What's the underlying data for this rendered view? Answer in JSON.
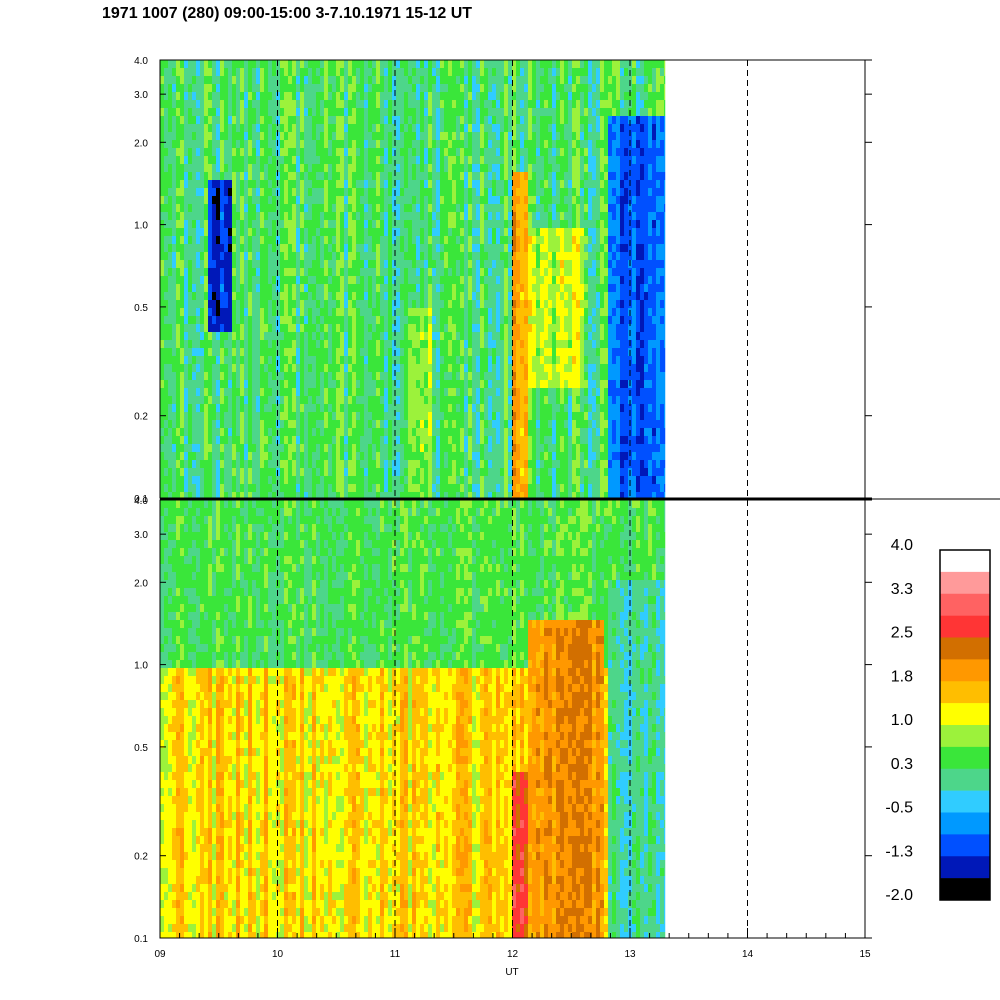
{
  "title": "1971 1007 (280) 09:00-15:00 3-7.10.1971  15-12 UT",
  "chart_data": {
    "type": "heatmap",
    "title": "1971 1007 (280) 09:00-15:00 3-7.10.1971  15-12 UT",
    "xlabel": "UT",
    "ylabel": "",
    "xlim": [
      9,
      15
    ],
    "x_tick_labels": [
      "09",
      "10",
      "11",
      "12",
      "13",
      "14",
      "15"
    ],
    "x_ticks": [
      9,
      10,
      11,
      12,
      13,
      14,
      15
    ],
    "data_end_ut": 13.3,
    "y_scale": "log",
    "ylim": [
      0.1,
      4.0
    ],
    "y_ticks": [
      0.1,
      0.2,
      0.5,
      1.0,
      2.0,
      3.0,
      4.0
    ],
    "y_tick_labels": [
      "0.1",
      "0.2",
      "0.5",
      "1.0",
      "2.0",
      "3.0",
      "4.0"
    ],
    "grid": "dashed vertical lines at each hour",
    "panels": [
      {
        "id": "upper",
        "dominant_level": 0.3,
        "features": [
          {
            "ut": [
              9.4,
              9.6
            ],
            "y": [
              0.4,
              1.5
            ],
            "level": -1.3
          },
          {
            "ut": [
              11.1,
              11.3
            ],
            "y": [
              0.1,
              0.5
            ],
            "level": 0.8
          },
          {
            "ut": [
              11.97,
              12.12
            ],
            "y": [
              0.1,
              1.6
            ],
            "level": 1.8
          },
          {
            "ut": [
              12.1,
              12.6
            ],
            "y": [
              0.25,
              1.0
            ],
            "level": 1.0
          },
          {
            "ut": [
              12.8,
              13.3
            ],
            "y": [
              0.1,
              2.5
            ],
            "level": -1.0
          }
        ]
      },
      {
        "id": "lower",
        "dominant_level": 1.4,
        "features": [
          {
            "ut": [
              9.0,
              13.3
            ],
            "y": [
              1.0,
              4.0
            ],
            "level": 0.4
          },
          {
            "ut": [
              11.98,
              12.1
            ],
            "y": [
              0.1,
              0.4
            ],
            "level": 2.6
          },
          {
            "ut": [
              12.1,
              12.75
            ],
            "y": [
              0.1,
              1.5
            ],
            "level": 2.0
          },
          {
            "ut": [
              12.8,
              13.3
            ],
            "y": [
              0.1,
              2.0
            ],
            "level": 0.0
          }
        ]
      }
    ],
    "colorbar": {
      "labels": [
        "4.0",
        "3.3",
        "2.5",
        "1.8",
        "1.0",
        "0.3",
        "-0.5",
        "-1.3",
        "-2.0"
      ],
      "min": -2.0,
      "max": 4.0,
      "colors": [
        "#ffffff",
        "#ff9a9a",
        "#ff6262",
        "#ff3535",
        "#d26f00",
        "#ff9800",
        "#ffbe00",
        "#ffff00",
        "#9cf23b",
        "#3ae63a",
        "#4dd68a",
        "#30ccff",
        "#0099ff",
        "#0050ff",
        "#0018b8",
        "#000000"
      ]
    }
  }
}
